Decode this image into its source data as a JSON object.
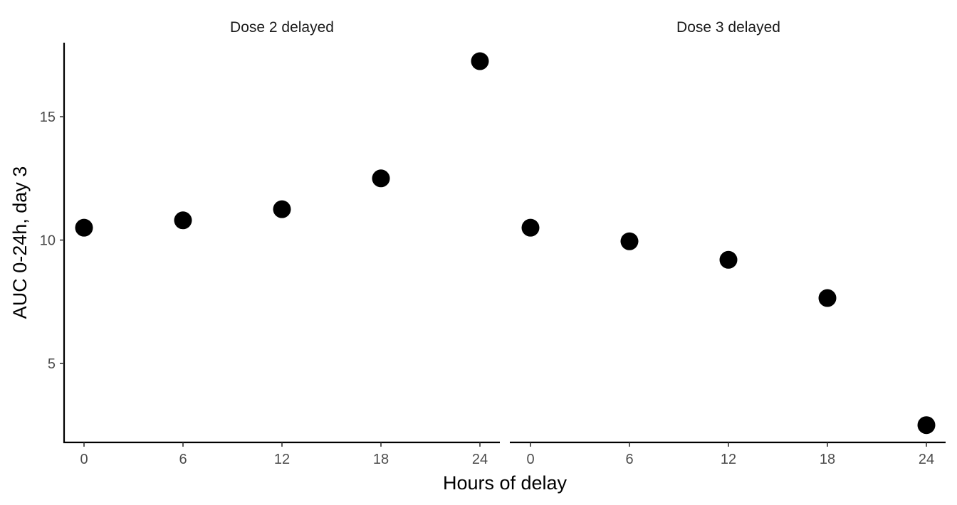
{
  "chart_data": {
    "type": "scatter",
    "xlabel": "Hours of delay",
    "ylabel": "AUC 0-24h, day 3",
    "ylim": [
      1.8,
      18.0
    ],
    "yticks": [
      5,
      10,
      15
    ],
    "grid": false,
    "marker_color": "#000000",
    "panels": [
      {
        "title": "Dose 2 delayed",
        "x": [
          0,
          6,
          12,
          18,
          24
        ],
        "y": [
          10.5,
          10.8,
          11.25,
          12.5,
          17.25
        ]
      },
      {
        "title": "Dose 3 delayed",
        "x": [
          0,
          6,
          12,
          18,
          24
        ],
        "y": [
          10.5,
          9.95,
          9.2,
          7.65,
          2.5
        ]
      }
    ],
    "xticks": [
      0,
      6,
      12,
      18,
      24
    ]
  }
}
